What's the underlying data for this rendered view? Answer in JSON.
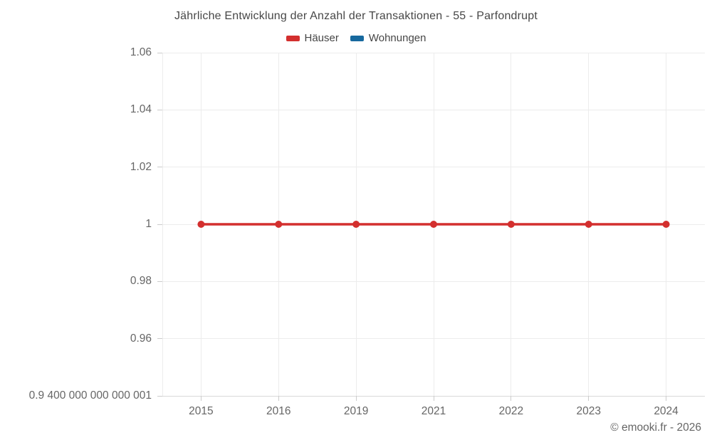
{
  "header": {
    "title": "Jährliche Entwicklung der Anzahl der Transaktionen - 55 - Parfondrupt"
  },
  "footer": {
    "credit": "© emooki.fr - 2026"
  },
  "colors": {
    "haeuser_red": "#d32f2e",
    "wohnungen_blue": "#17699e",
    "grid": "#ececec",
    "axis_line": "#d9d9d9",
    "tick": "#cccccc",
    "axis_text": "#666666",
    "title_text": "#474747"
  },
  "chart_data": {
    "type": "line",
    "title": "Jährliche Entwicklung der Anzahl der Transaktionen - 55 - Parfondrupt",
    "xlabel": "",
    "ylabel": "",
    "categories": [
      "2015",
      "2016",
      "2019",
      "2021",
      "2022",
      "2023",
      "2024"
    ],
    "series": [
      {
        "name": "Häuser",
        "color": "#d32f2e",
        "marker": "circle",
        "values": [
          1,
          1,
          1,
          1,
          1,
          1,
          1
        ]
      },
      {
        "name": "Wohnungen",
        "color": "#17699e",
        "marker": "circle",
        "values": []
      }
    ],
    "legend": [
      {
        "label": "Häuser",
        "color": "#d32f2e"
      },
      {
        "label": "Wohnungen",
        "color": "#17699e"
      }
    ],
    "legend_position": "top",
    "grid": true,
    "ylim": [
      0.9400000000000001,
      1.06
    ],
    "yticks": [
      {
        "value": 1.06,
        "label": "1.06"
      },
      {
        "value": 1.04,
        "label": "1.04"
      },
      {
        "value": 1.02,
        "label": "1.02"
      },
      {
        "value": 1,
        "label": "1"
      },
      {
        "value": 0.98,
        "label": "0.98"
      },
      {
        "value": 0.96,
        "label": "0.96"
      },
      {
        "value": 0.9400000000000001,
        "label": "0.9 400 000 000 000 001"
      }
    ]
  }
}
